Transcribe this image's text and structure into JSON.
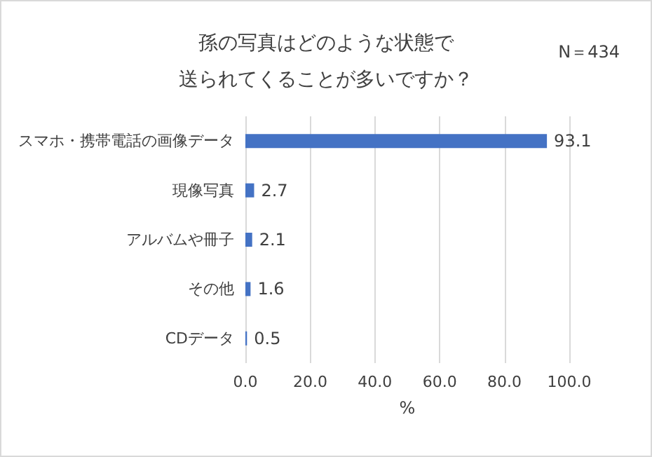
{
  "chart_data": {
    "type": "bar",
    "orientation": "horizontal",
    "title": "孫の写真はどのような状態で送られてくることが多いですか？",
    "annotations": [
      "N＝434"
    ],
    "categories": [
      "スマホ・携帯電話の画像データ",
      "現像写真",
      "アルバムや冊子",
      "その他",
      "CDデータ"
    ],
    "values": [
      93.1,
      2.7,
      2.1,
      1.6,
      0.5
    ],
    "color": "#4472c4",
    "data_labels": true,
    "xlabel": "%",
    "xlim": [
      0,
      100
    ],
    "xticks": [
      {
        "value": 0,
        "label": "0.0"
      },
      {
        "value": 20,
        "label": "20.0"
      },
      {
        "value": 40,
        "label": "40.0"
      },
      {
        "value": 60,
        "label": "60.0"
      },
      {
        "value": 80,
        "label": "80.0"
      },
      {
        "value": 100,
        "label": "100.0"
      }
    ],
    "grid": true
  }
}
